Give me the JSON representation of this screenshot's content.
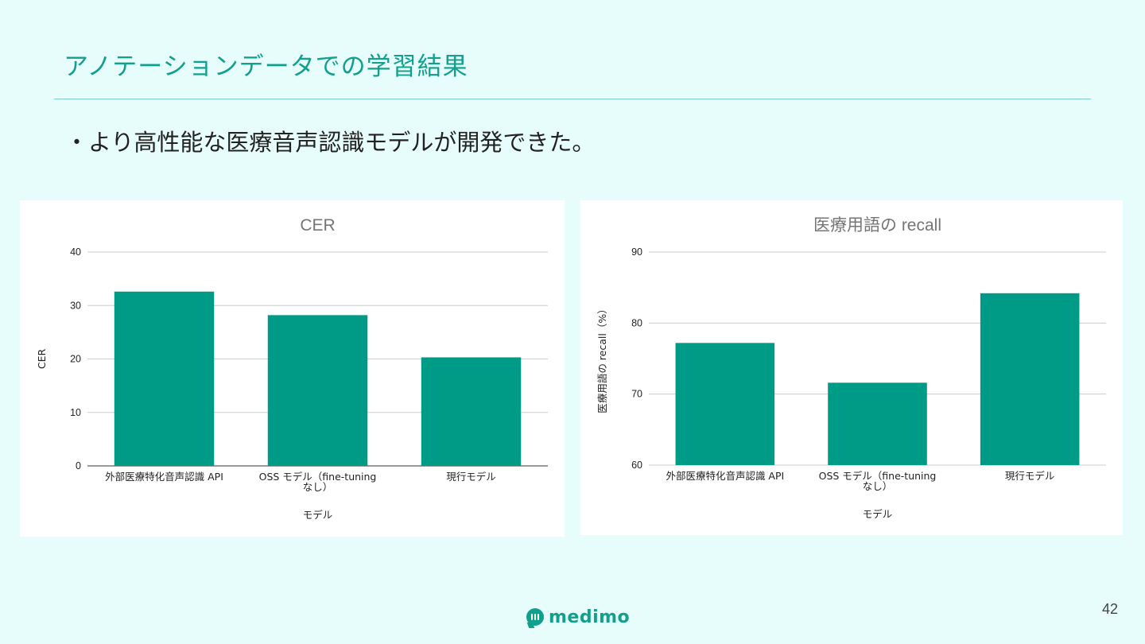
{
  "slide": {
    "title": "アノテーションデータでの学習結果",
    "bullet": "・より高性能な医療音声認識モデルが開発できた。",
    "logo_text": "medimo",
    "page_number": "42",
    "accent_color": "#12a08e",
    "bar_color": "#009b86"
  },
  "chart_data": [
    {
      "type": "bar",
      "title": "CER",
      "xlabel": "モデル",
      "ylabel": "CER",
      "categories": [
        [
          "外部医療特化音声認識 API"
        ],
        [
          "OSS モデル（fine-tuning",
          "なし）"
        ],
        [
          "現行モデル"
        ]
      ],
      "values": [
        32.6,
        28.2,
        20.3
      ],
      "ylim": [
        0,
        40
      ],
      "yticks": [
        0,
        10,
        20,
        30,
        40
      ],
      "grid": true
    },
    {
      "type": "bar",
      "title": "医療用語の recall",
      "xlabel": "モデル",
      "ylabel": "医療用語の recall（%）",
      "categories": [
        [
          "外部医療特化音声認識 API"
        ],
        [
          "OSS モデル（fine-tuning",
          "なし）"
        ],
        [
          "現行モデル"
        ]
      ],
      "values": [
        77.2,
        71.6,
        84.2
      ],
      "ylim": [
        60,
        90
      ],
      "yticks": [
        60,
        70,
        80,
        90
      ],
      "grid": true
    }
  ]
}
